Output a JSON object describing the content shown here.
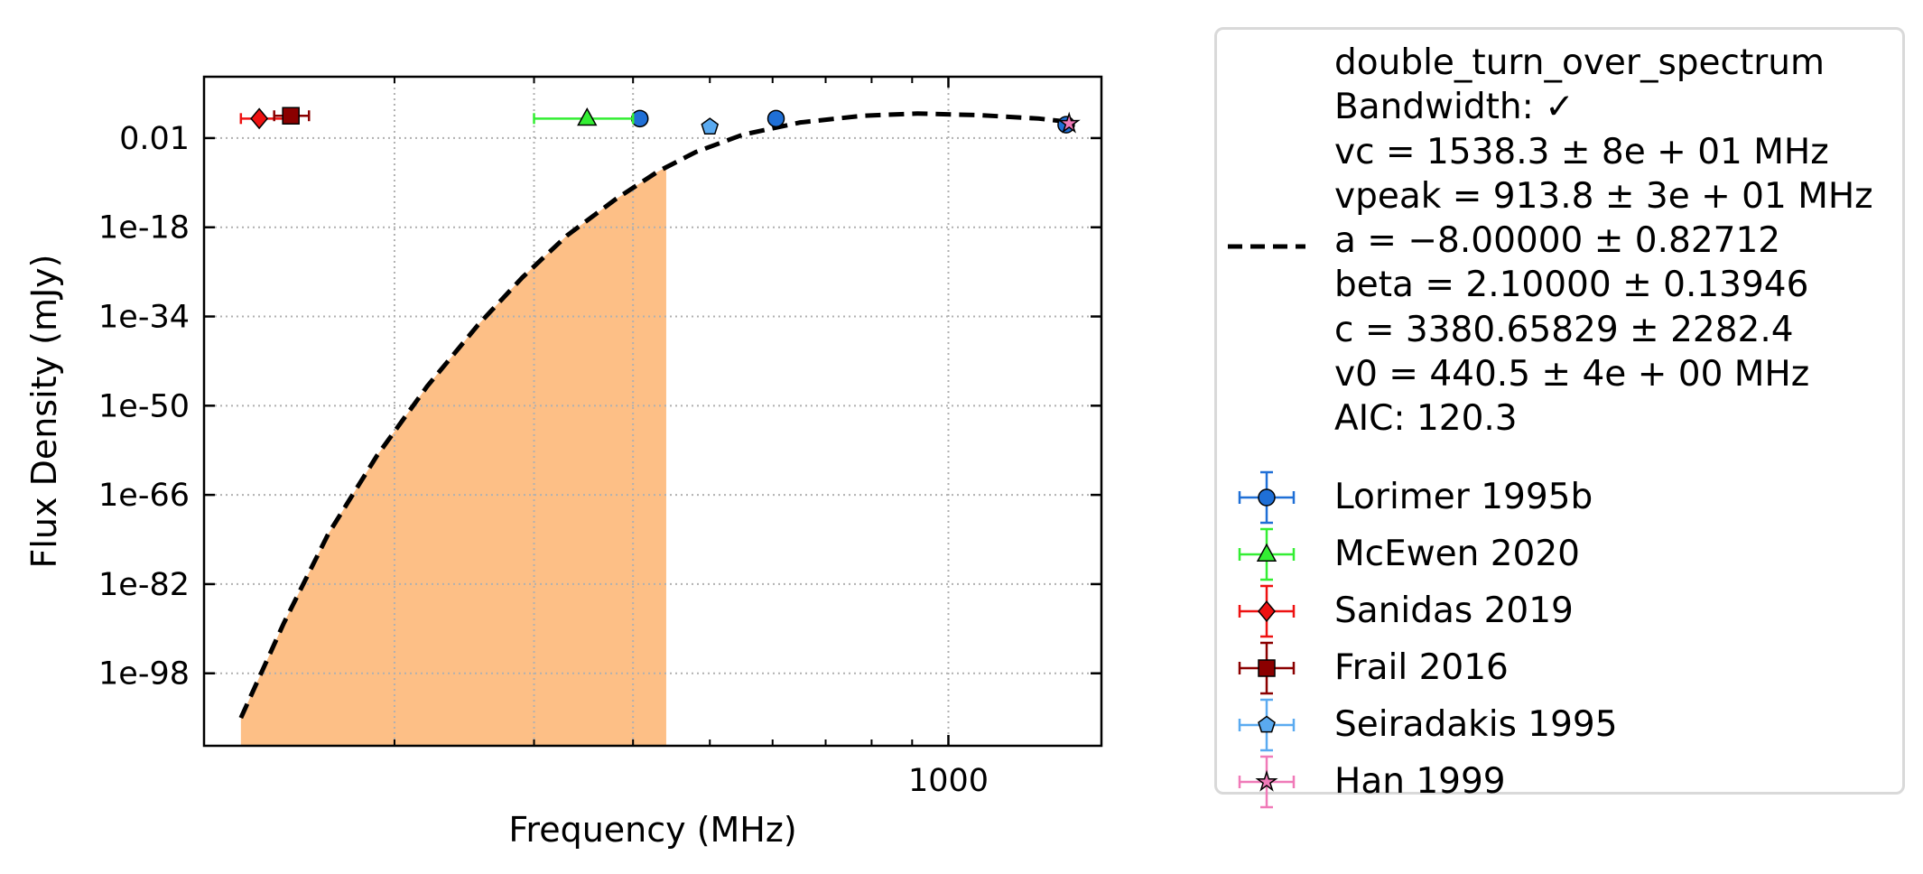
{
  "chart_data": {
    "type": "scatter",
    "title": "",
    "xlabel": "Frequency (MHz)",
    "ylabel": "Flux Density (mJy)",
    "x_scale": "log",
    "y_scale": "log",
    "xlim": [
      115,
      1560
    ],
    "ylim_exponent": [
      -111,
      9
    ],
    "x_ticks": [
      {
        "value": 1000,
        "label": "1000"
      }
    ],
    "y_ticks": [
      {
        "exponent": -2,
        "label": "0.01"
      },
      {
        "exponent": -18,
        "label": "1e-18"
      },
      {
        "exponent": -34,
        "label": "1e-34"
      },
      {
        "exponent": -50,
        "label": "1e-50"
      },
      {
        "exponent": -66,
        "label": "1e-66"
      },
      {
        "exponent": -82,
        "label": "1e-82"
      },
      {
        "exponent": -98,
        "label": "1e-98"
      }
    ],
    "grid": true,
    "legend_position": "outside-right",
    "fit": {
      "model": "double_turn_over_spectrum",
      "label_lines": [
        "double_turn_over_spectrum",
        "Bandwidth: ✓",
        "vc = 1538.3 ± 8e + 01 MHz",
        "vpeak = 913.8 ± 3e + 01 MHz",
        "a = −8.00000 ± 0.82712",
        "beta = 2.10000 ± 0.13946",
        "c = 3380.65829 ± 2282.4",
        "v0 = 440.5 ± 4e + 00 MHz",
        "AIC: 120.3"
      ],
      "curve_points": [
        [
          128,
          -106.0
        ],
        [
          145,
          -89.0
        ],
        [
          165,
          -73.0
        ],
        [
          190,
          -59.0
        ],
        [
          220,
          -46.5
        ],
        [
          255,
          -35.5
        ],
        [
          290,
          -27.0
        ],
        [
          330,
          -19.5
        ],
        [
          380,
          -13.0
        ],
        [
          430,
          -8.0
        ],
        [
          480,
          -4.5
        ],
        [
          550,
          -1.4
        ],
        [
          650,
          0.8
        ],
        [
          780,
          2.0
        ],
        [
          913.8,
          2.4
        ],
        [
          1100,
          2.1
        ],
        [
          1300,
          1.5
        ],
        [
          1440,
          0.8
        ]
      ],
      "shaded_band_max_mhz": 440.5,
      "line_color": "#000000",
      "band_color": "#fdbf86"
    },
    "series": [
      {
        "name": "Lorimer 1995b",
        "marker": "circle",
        "color": "#1f6fd6",
        "errcolor": "#1f6fd6",
        "points": [
          {
            "x": 408,
            "y_exp": 1.5,
            "xerr": 0
          },
          {
            "x": 606,
            "y_exp": 1.5,
            "xerr": 0
          },
          {
            "x": 1408,
            "y_exp": 0.4,
            "xerr": 0
          }
        ]
      },
      {
        "name": "McEwen 2020",
        "marker": "triangle",
        "color": "#33ee33",
        "errcolor": "#33ee33",
        "points": [
          {
            "x": 350,
            "y_exp": 1.5,
            "xerr": [
              50,
              50
            ]
          }
        ]
      },
      {
        "name": "Sanidas 2019",
        "marker": "diamond",
        "color": "#ee1111",
        "errcolor": "#ee1111",
        "points": [
          {
            "x": 135,
            "y_exp": 1.5,
            "xerr": [
              7,
              13
            ]
          }
        ]
      },
      {
        "name": "Frail 2016",
        "marker": "square",
        "color": "#8b0000",
        "errcolor": "#8b0000",
        "points": [
          {
            "x": 148,
            "y_exp": 2.0,
            "xerr": [
              7,
              8
            ]
          }
        ]
      },
      {
        "name": "Seiradakis 1995",
        "marker": "pentagon",
        "color": "#5aaaf0",
        "errcolor": "#5aaaf0",
        "points": [
          {
            "x": 500,
            "y_exp": 0.0,
            "xerr": [
              7,
              7
            ]
          }
        ]
      },
      {
        "name": "Han 1999",
        "marker": "star",
        "color": "#f07ab8",
        "errcolor": "#f07ab8",
        "points": [
          {
            "x": 1420,
            "y_exp": 0.6,
            "xerr": 0
          }
        ]
      }
    ]
  }
}
